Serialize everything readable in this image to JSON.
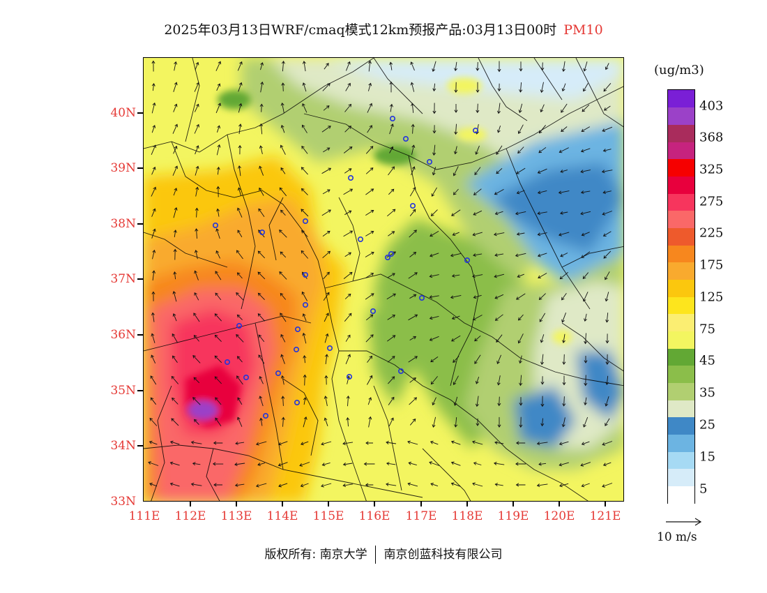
{
  "title": {
    "main": "2025年03月13日WRF/cmaq模式12km预报产品:03月13日00时",
    "pollutant": "PM10"
  },
  "latitudes": [
    "40N",
    "39N",
    "38N",
    "37N",
    "36N",
    "35N",
    "34N",
    "33N"
  ],
  "longitudes": [
    "111E",
    "112E",
    "113E",
    "114E",
    "115E",
    "116E",
    "117E",
    "118E",
    "119E",
    "120E",
    "121E"
  ],
  "legend": {
    "unit": "(ug/m3)",
    "labels": [
      "403",
      "368",
      "325",
      "275",
      "225",
      "175",
      "125",
      "75",
      "45",
      "35",
      "25",
      "15",
      "5"
    ],
    "colors": [
      "#ffffff",
      "#d6ecf9",
      "#a6daf4",
      "#6cb4e2",
      "#3f88c6",
      "#dfe9c6",
      "#b1cf71",
      "#8bbe4a",
      "#62a834",
      "#f3f560",
      "#fbee72",
      "#fde51d",
      "#fbc70e",
      "#f9aa2e",
      "#f7871e",
      "#ee5a2c",
      "#fa6868",
      "#f7355d",
      "#e8003d",
      "#f60000",
      "#c6237e",
      "#a92c5c",
      "#9b41c8",
      "#7a1fd6"
    ]
  },
  "wind_reference": {
    "label": "10 m/s"
  },
  "copyright": {
    "owner_label": "版权所有:",
    "org1": "南京大学",
    "org2": "南京创蓝科技有限公司"
  },
  "stations": [
    "st1",
    "st2",
    "st3",
    "st4",
    "st5",
    "st6",
    "st7",
    "st8",
    "st9",
    "st10",
    "st11",
    "st12",
    "st13",
    "st14",
    "st15",
    "st16",
    "st17",
    "st18",
    "st19",
    "st20",
    "st21",
    "st22",
    "st23",
    "st24",
    "st25",
    "st26",
    "st27",
    "st28"
  ]
}
